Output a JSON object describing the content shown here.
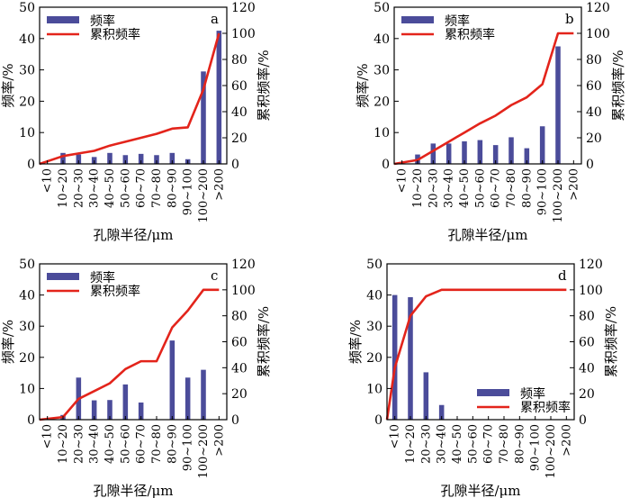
{
  "colors": {
    "bar": "#4b4c9a",
    "line": "#e3241b",
    "axis": "#000000"
  },
  "chart_data": [
    {
      "type": "bar+line",
      "panel": "a",
      "categories": [
        "<10",
        "10~20",
        "20~30",
        "30~40",
        "40~50",
        "50~60",
        "60~70",
        "70~80",
        "80~90",
        "90~100",
        "100~200",
        ">200"
      ],
      "series": [
        {
          "name": "频率",
          "type": "bar",
          "axis": "left",
          "values": [
            0,
            3.5,
            3.0,
            2.2,
            3.5,
            2.8,
            3.2,
            2.8,
            3.5,
            1.5,
            29.5,
            42.5
          ]
        },
        {
          "name": "累积频率",
          "type": "line",
          "axis": "right",
          "values": [
            0,
            6,
            8,
            10,
            14,
            17,
            20,
            23,
            27,
            28,
            57,
            100
          ]
        }
      ],
      "xlabel": "孔隙半径/μm",
      "ylabel": "频率/%",
      "y2label": "累积频率/%",
      "ylim": [
        0,
        50
      ],
      "yticks": [
        0,
        10,
        20,
        30,
        40,
        50
      ],
      "y2lim": [
        0,
        120
      ],
      "y2ticks": [
        0,
        20,
        40,
        60,
        80,
        100,
        120
      ],
      "legend": "top-left"
    },
    {
      "type": "bar+line",
      "panel": "b",
      "categories": [
        "<10",
        "10~20",
        "20~30",
        "30~40",
        "40~50",
        "50~60",
        "60~70",
        "70~80",
        "80~90",
        "90~100",
        "100~200",
        ">200"
      ],
      "series": [
        {
          "name": "频率",
          "type": "bar",
          "axis": "left",
          "values": [
            0,
            3.0,
            6.5,
            6.5,
            7.2,
            7.6,
            6.0,
            8.5,
            5.0,
            12.0,
            37.5,
            0
          ]
        },
        {
          "name": "累积频率",
          "type": "line",
          "axis": "right",
          "values": [
            0,
            3,
            10,
            17,
            24,
            31,
            37,
            45,
            51,
            61,
            100,
            100
          ]
        }
      ],
      "xlabel": "孔隙半径/μm",
      "ylabel": "频率/%",
      "y2label": "累积频率/%",
      "ylim": [
        0,
        50
      ],
      "yticks": [
        0,
        10,
        20,
        30,
        40,
        50
      ],
      "y2lim": [
        0,
        120
      ],
      "y2ticks": [
        0,
        20,
        40,
        60,
        80,
        100,
        120
      ],
      "legend": "top-left"
    },
    {
      "type": "bar+line",
      "panel": "c",
      "categories": [
        "<10",
        "10~20",
        "20~30",
        "30~40",
        "40~50",
        "50~60",
        "60~70",
        "70~80",
        "80~90",
        "90~100",
        "100~200",
        ">200"
      ],
      "series": [
        {
          "name": "频率",
          "type": "bar",
          "axis": "left",
          "values": [
            0,
            1.5,
            13.5,
            6.2,
            6.3,
            11.3,
            5.5,
            0,
            25.4,
            13.5,
            16.0,
            0
          ]
        },
        {
          "name": "累积频率",
          "type": "line",
          "axis": "right",
          "values": [
            0,
            2,
            16,
            22,
            28,
            39,
            45,
            45,
            71,
            84,
            100,
            100
          ]
        }
      ],
      "xlabel": "孔隙半径/μm",
      "ylabel": "频率/%",
      "y2label": "累积频率/%",
      "ylim": [
        0,
        50
      ],
      "yticks": [
        0,
        10,
        20,
        30,
        40,
        50
      ],
      "y2lim": [
        0,
        120
      ],
      "y2ticks": [
        0,
        20,
        40,
        60,
        80,
        100,
        120
      ],
      "legend": "top-left"
    },
    {
      "type": "bar+line",
      "panel": "d",
      "categories": [
        "<10",
        "10~20",
        "20~30",
        "30~40",
        "40~50",
        "50~60",
        "60~70",
        "70~80",
        "80~90",
        "90~100",
        "100~200",
        ">200"
      ],
      "series": [
        {
          "name": "频率",
          "type": "bar",
          "axis": "left",
          "values": [
            40.0,
            39.3,
            15.2,
            4.7,
            0,
            0,
            0,
            0,
            0,
            0,
            0,
            0
          ]
        },
        {
          "name": "累积频率",
          "type": "line",
          "axis": "right",
          "values": [
            40,
            80,
            95,
            100,
            100,
            100,
            100,
            100,
            100,
            100,
            100,
            100
          ]
        }
      ],
      "xlabel": "孔隙半径/μm",
      "ylabel": "频率/%",
      "y2label": "累积频率/%",
      "ylim": [
        0,
        50
      ],
      "yticks": [
        0,
        10,
        20,
        30,
        40,
        50
      ],
      "y2lim": [
        0,
        120
      ],
      "y2ticks": [
        0,
        20,
        40,
        60,
        80,
        100,
        120
      ],
      "legend": "bottom-right"
    }
  ]
}
